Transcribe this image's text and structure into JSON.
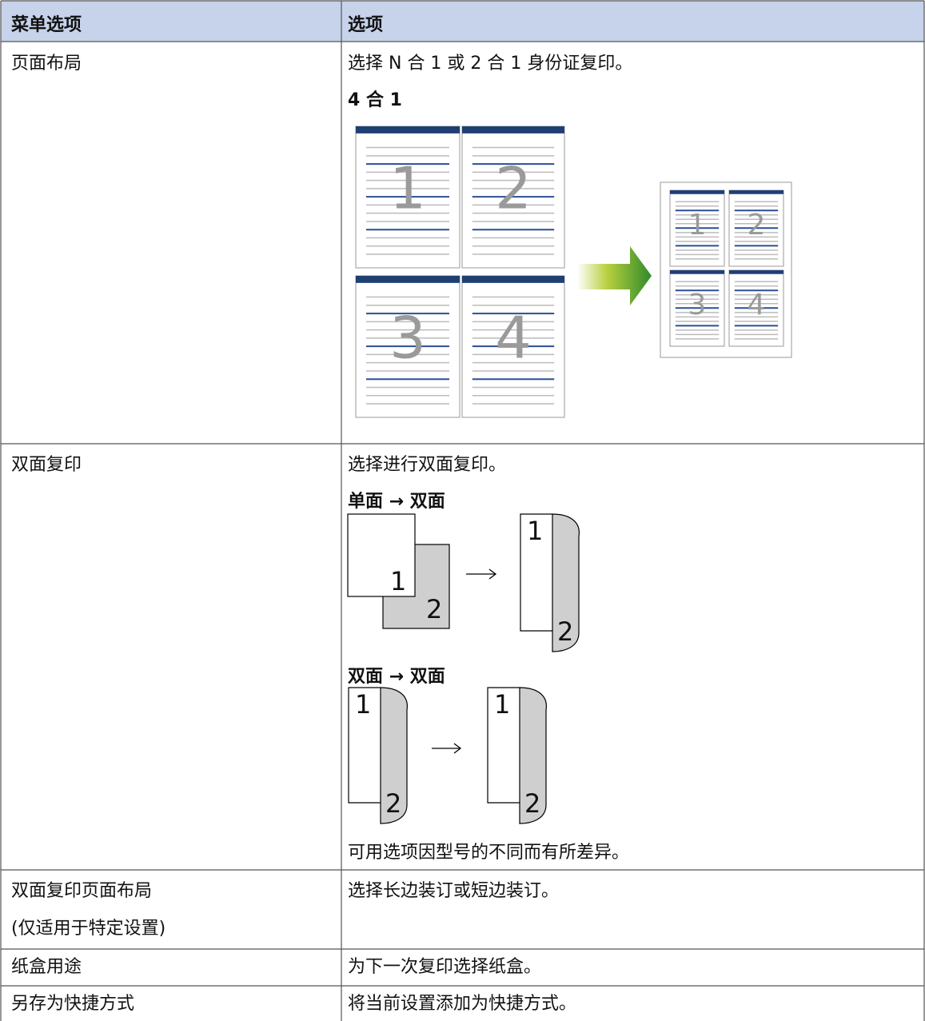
{
  "table": {
    "header": [
      "菜单选项",
      "选项"
    ],
    "rows": [
      {
        "menu": [
          "页面布局"
        ],
        "option": [
          "选择 N 合 1 或 2 合 1 身份证复印。"
        ],
        "figures": [
          {
            "heading": "4 合 1",
            "labels": [
              "1",
              "2",
              "3",
              "4"
            ]
          }
        ]
      },
      {
        "menu": [
          "双面复印"
        ],
        "option": [
          "选择进行双面复印。"
        ],
        "figures": [
          {
            "heading": "单面 → 双面",
            "labels": [
              "1",
              "2",
              "1",
              "2"
            ]
          },
          {
            "heading": "双面 → 双面",
            "labels": [
              "1",
              "2",
              "1",
              "2"
            ]
          }
        ],
        "note": "可用选项因型号的不同而有所差异。"
      },
      {
        "menu": [
          "双面复印页面布局",
          "(仅适用于特定设置)"
        ],
        "option": [
          "选择长边装订或短边装订。"
        ]
      },
      {
        "menu": [
          "纸盒用途"
        ],
        "option": [
          "为下一次复印选择纸盒。"
        ]
      },
      {
        "menu": [
          "另存为快捷方式"
        ],
        "option": [
          "将当前设置添加为快捷方式。"
        ]
      }
    ]
  }
}
